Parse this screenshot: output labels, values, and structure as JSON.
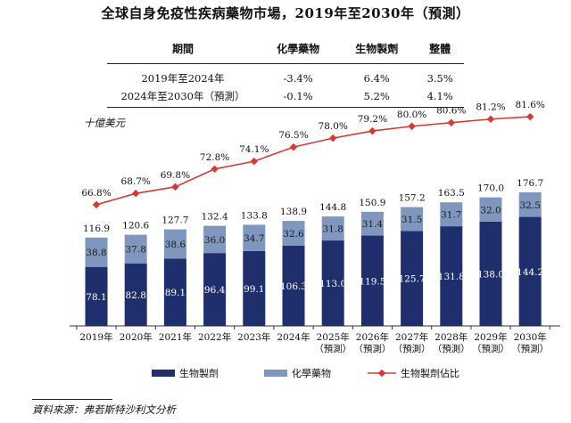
{
  "title": "全球自身免疫性疾病藥物市場，2019年至2030年（預測）",
  "table": {
    "headers": [
      "期間",
      "化學藥物",
      "生物製劑",
      "整體"
    ],
    "rows": [
      [
        "2019年至2024年",
        "-3.4%",
        "6.4%",
        "3.5%"
      ],
      [
        "2024年至2030年（預測）",
        "-0.1%",
        "5.2%",
        "4.1%"
      ]
    ]
  },
  "unit_label": "十億美元",
  "source": "資料來源：弗若斯特沙利文分析",
  "colors": {
    "biologics": "#1f2f6e",
    "chemical": "#7f96bf",
    "share_line": "#d63a35",
    "axis": "#333333"
  },
  "chart_data": {
    "type": "bar",
    "stacked": true,
    "categories": [
      "2019年",
      "2020年",
      "2021年",
      "2022年",
      "2023年",
      "2024年",
      "2025年\n（預測）",
      "2026年\n（預測）",
      "2027年\n（預測）",
      "2028年\n（預測）",
      "2029年\n（預測）",
      "2030年\n（預測）"
    ],
    "series": [
      {
        "name": "生物製劑",
        "values": [
          78.1,
          82.8,
          89.1,
          96.4,
          99.1,
          106.3,
          113.0,
          119.5,
          125.7,
          131.8,
          138.0,
          144.2
        ]
      },
      {
        "name": "化學藥物",
        "values": [
          38.8,
          37.8,
          38.6,
          36.0,
          34.7,
          32.6,
          31.8,
          31.4,
          31.5,
          31.7,
          32.0,
          32.5
        ]
      }
    ],
    "totals": [
      "116.9",
      "120.6",
      "127.7",
      "132.4",
      "133.8",
      "138.9",
      "144.8",
      "150.9",
      "157.2",
      "163.5",
      "170.0",
      "176.7"
    ],
    "bio_labels": [
      "78.1",
      "82.8",
      "89.1",
      "96.4",
      "99.1",
      "106.3",
      "113.0",
      "119.5",
      "125.7",
      "131.8",
      "138.0",
      "144.2"
    ],
    "chem_labels": [
      "38.8",
      "37.8",
      "38.6",
      "36.0",
      "34.7",
      "32.6",
      "31.8",
      "31.4",
      "31.5",
      "31.7",
      "32.0",
      "32.5"
    ],
    "line": {
      "name": "生物製劑佔比",
      "values": [
        66.8,
        68.7,
        69.8,
        72.8,
        74.1,
        76.5,
        78.0,
        79.2,
        80.0,
        80.6,
        81.2,
        81.6
      ],
      "labels": [
        "66.8%",
        "68.7%",
        "69.8%",
        "72.8%",
        "74.1%",
        "76.5%",
        "78.0%",
        "79.2%",
        "80.0%",
        "80.6%",
        "81.2%",
        "81.6%"
      ]
    },
    "ylim": [
      0,
      180
    ],
    "legend_position": "bottom",
    "grid": false
  }
}
